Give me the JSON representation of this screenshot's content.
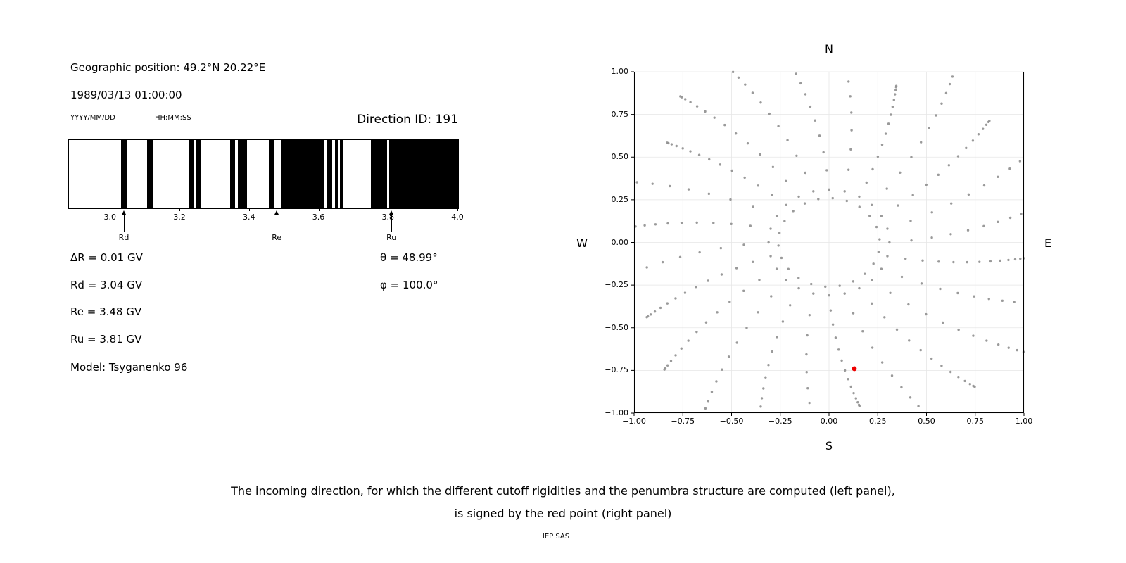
{
  "left_panel": {
    "geo_position": "Geographic position: 49.2°N 20.22°E",
    "datetime": "1989/03/13 01:00:00",
    "date_format": "YYYY/MM/DD",
    "time_format": "HH:MM:SS",
    "direction_id": "Direction ID: 191",
    "params_left": [
      "ΔR = 0.01 GV",
      "Rd = 3.04 GV",
      "Re = 3.48 GV",
      "Ru = 3.81 GV",
      "Model: Tsyganenko 96"
    ],
    "params_right": [
      "θ = 48.99°",
      "φ = 100.0°"
    ]
  },
  "caption": {
    "line1": "The incoming direction, for which the different cutoff rigidities and the penumbra structure are computed (left panel),",
    "line2": "is signed by the red point (right panel)",
    "credit": "IEP SAS"
  },
  "chart_data": [
    {
      "type": "bar",
      "name": "penumbra-structure",
      "xlim": [
        2.88,
        4.0
      ],
      "xticks": [
        3.0,
        3.2,
        3.4,
        3.6,
        3.8,
        4.0
      ],
      "xtick_labels": [
        "3.0",
        "3.2",
        "3.4",
        "3.6",
        "3.8",
        "4.0"
      ],
      "bar_color": "#000000",
      "bars_gv": [
        [
          3.03,
          3.046
        ],
        [
          3.105,
          3.12
        ],
        [
          3.226,
          3.238
        ],
        [
          3.244,
          3.258
        ],
        [
          3.343,
          3.358
        ],
        [
          3.366,
          3.392
        ],
        [
          3.455,
          3.469
        ],
        [
          3.489,
          3.615
        ],
        [
          3.621,
          3.637
        ],
        [
          3.645,
          3.653
        ],
        [
          3.659,
          3.669
        ],
        [
          3.748,
          3.795
        ],
        [
          3.801,
          4.0
        ]
      ],
      "markers": [
        {
          "label": "Rd",
          "x_gv": 3.04
        },
        {
          "label": "Re",
          "x_gv": 3.48
        },
        {
          "label": "Ru",
          "x_gv": 3.81
        }
      ],
      "values": {
        "delta_R_GV": 0.01,
        "Rd_GV": 3.04,
        "Re_GV": 3.48,
        "Ru_GV": 3.81,
        "theta_deg": 48.99,
        "phi_deg": 100.0,
        "direction_id": 191,
        "model": "Tsyganenko 96"
      }
    },
    {
      "type": "scatter",
      "name": "incoming-direction-map",
      "xlim": [
        -1,
        1
      ],
      "ylim": [
        -1,
        1
      ],
      "xticks": [
        -1,
        -0.75,
        -0.5,
        -0.25,
        0,
        0.25,
        0.5,
        0.75,
        1
      ],
      "xtick_labels": [
        "−1.00",
        "−0.75",
        "−0.50",
        "−0.25",
        "0.00",
        "0.25",
        "0.50",
        "0.75",
        "1.00"
      ],
      "yticks": [
        -1,
        -0.75,
        -0.5,
        -0.25,
        0,
        0.25,
        0.5,
        0.75,
        1
      ],
      "ytick_labels": [
        "−1.00",
        "−0.75",
        "−0.50",
        "−0.25",
        "0.00",
        "0.25",
        "0.50",
        "0.75",
        "1.00"
      ],
      "compass": {
        "top": "N",
        "bottom": "S",
        "left": "W",
        "right": "E"
      },
      "dot_color": "#8f8f8f",
      "grid_color": "#e6e6e6",
      "spokes": {
        "count": 24,
        "angle_step_deg": 15,
        "start_angle_deg": 0,
        "r_start": 0.31,
        "r_span": 0.84,
        "r_span_wobble": 0.12,
        "points_per_spoke": 14,
        "density_exp": 1.8,
        "curvature_deg_per_unit_r": 14
      },
      "inner_ring": {
        "radius": 0.26,
        "count": 22,
        "phase_deg": 4
      },
      "red_point": {
        "x": 0.13,
        "y": -0.74,
        "color": "#ee0000"
      }
    }
  ]
}
